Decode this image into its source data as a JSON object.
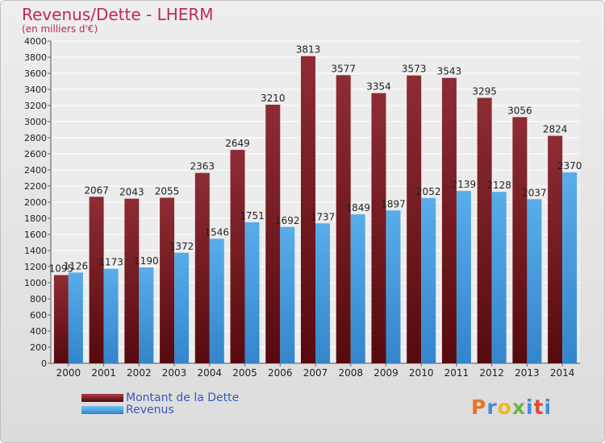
{
  "title": "Revenus/Dette - LHERM",
  "subtitle": "(en milliers d'€)",
  "colors": {
    "title": "#c0285a",
    "dette": "#7a1d22",
    "revenus": "#4a9fe0",
    "legend_text": "#3b56c4"
  },
  "chart_data": {
    "type": "bar",
    "title": "Revenus/Dette - LHERM",
    "subtitle": "(en milliers d'€)",
    "categories": [
      "2000",
      "2001",
      "2002",
      "2003",
      "2004",
      "2005",
      "2006",
      "2007",
      "2008",
      "2009",
      "2010",
      "2011",
      "2012",
      "2013",
      "2014"
    ],
    "series": [
      {
        "name": "Montant de la Dette",
        "color": "#7a1d22",
        "values": [
          1095,
          2067,
          2043,
          2055,
          2363,
          2649,
          3210,
          3813,
          3577,
          3354,
          3573,
          3543,
          3295,
          3056,
          2824
        ]
      },
      {
        "name": "Revenus",
        "color": "#4a9fe0",
        "values": [
          1126,
          1173,
          1190,
          1372,
          1546,
          1751,
          1692,
          1737,
          1849,
          1897,
          2052,
          2139,
          2128,
          2037,
          2370
        ]
      }
    ],
    "ylim": [
      0,
      4000
    ],
    "ytick_step": 200,
    "grid": true,
    "legend_position": "bottom-left"
  },
  "legend": [
    {
      "label": "Montant de la Dette"
    },
    {
      "label": "Revenus"
    }
  ],
  "logo": {
    "letters": [
      "P",
      "r",
      "o",
      "x",
      "i",
      "t",
      "i"
    ],
    "colors": [
      "#e8752a",
      "#3f8fd8",
      "#f0b81f",
      "#6bb644",
      "#3f8fd8",
      "#e04a3a",
      "#3f8fd8"
    ]
  }
}
